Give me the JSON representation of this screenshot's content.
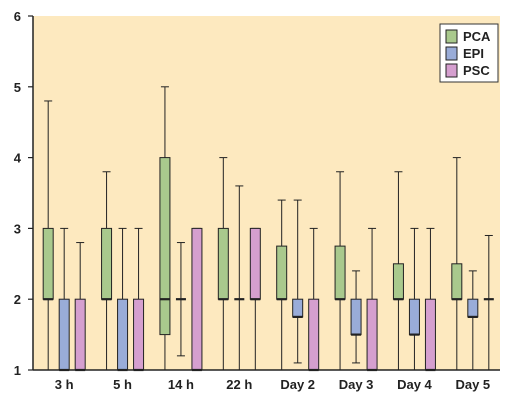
{
  "chart_data": {
    "type": "box",
    "title": "",
    "xlabel": "",
    "ylabel": "",
    "categories": [
      "3 h",
      "5 h",
      "14 h",
      "22 h",
      "Day 2",
      "Day 3",
      "Day 4",
      "Day 5"
    ],
    "ylim": [
      1,
      6
    ],
    "yticks": [
      1,
      2,
      3,
      4,
      5,
      6
    ],
    "grid": false,
    "legend_position": "top-right",
    "series": [
      {
        "name": "PCA",
        "color": "#a9c98d",
        "boxes": [
          {
            "min": 1,
            "q1": 2,
            "median": 2,
            "q3": 3,
            "max": 4.8
          },
          {
            "min": 1,
            "q1": 2,
            "median": 2,
            "q3": 3,
            "max": 3.8
          },
          {
            "min": 1,
            "q1": 1.5,
            "median": 2,
            "q3": 4,
            "max": 5
          },
          {
            "min": 1,
            "q1": 2,
            "median": 2,
            "q3": 3,
            "max": 4
          },
          {
            "min": 1,
            "q1": 2,
            "median": 2,
            "q3": 2.75,
            "max": 3.4
          },
          {
            "min": 1,
            "q1": 2,
            "median": 2,
            "q3": 2.75,
            "max": 3.8
          },
          {
            "min": 1,
            "q1": 2,
            "median": 2,
            "q3": 2.5,
            "max": 3.8
          },
          {
            "min": 1,
            "q1": 2,
            "median": 2,
            "q3": 2.5,
            "max": 4
          }
        ]
      },
      {
        "name": "EPI",
        "color": "#99acd8",
        "boxes": [
          {
            "min": 1,
            "q1": 1,
            "median": 1,
            "q3": 2,
            "max": 3
          },
          {
            "min": 1,
            "q1": 1,
            "median": 1,
            "q3": 2,
            "max": 3
          },
          {
            "min": 1.2,
            "q1": 2,
            "median": 2,
            "q3": 2,
            "max": 2.8
          },
          {
            "min": 1,
            "q1": 2,
            "median": 2,
            "q3": 2,
            "max": 3.6
          },
          {
            "min": 1.1,
            "q1": 1.75,
            "median": 1.75,
            "q3": 2,
            "max": 3.4
          },
          {
            "min": 1.1,
            "q1": 1.5,
            "median": 1.5,
            "q3": 2,
            "max": 2.4
          },
          {
            "min": 1,
            "q1": 1.5,
            "median": 1.5,
            "q3": 2,
            "max": 3
          },
          {
            "min": 1,
            "q1": 1.75,
            "median": 1.75,
            "q3": 2,
            "max": 2.4
          }
        ]
      },
      {
        "name": "PSC",
        "color": "#d59fcf",
        "boxes": [
          {
            "min": 1,
            "q1": 1,
            "median": 1,
            "q3": 2,
            "max": 2.8
          },
          {
            "min": 1,
            "q1": 1,
            "median": 1,
            "q3": 2,
            "max": 3
          },
          {
            "min": 1,
            "q1": 1,
            "median": 1,
            "q3": 3,
            "max": 3
          },
          {
            "min": 1,
            "q1": 2,
            "median": 2,
            "q3": 3,
            "max": 3
          },
          {
            "min": 1,
            "q1": 1,
            "median": 1,
            "q3": 2,
            "max": 3
          },
          {
            "min": 1,
            "q1": 1,
            "median": 1,
            "q3": 2,
            "max": 3
          },
          {
            "min": 1,
            "q1": 1,
            "median": 1,
            "q3": 2,
            "max": 3
          },
          {
            "min": 1,
            "q1": 2,
            "median": 2,
            "q3": 2,
            "max": 2.9
          }
        ]
      }
    ]
  },
  "colors": {
    "plot_background": "#fde9bf",
    "axis": "#222222"
  }
}
